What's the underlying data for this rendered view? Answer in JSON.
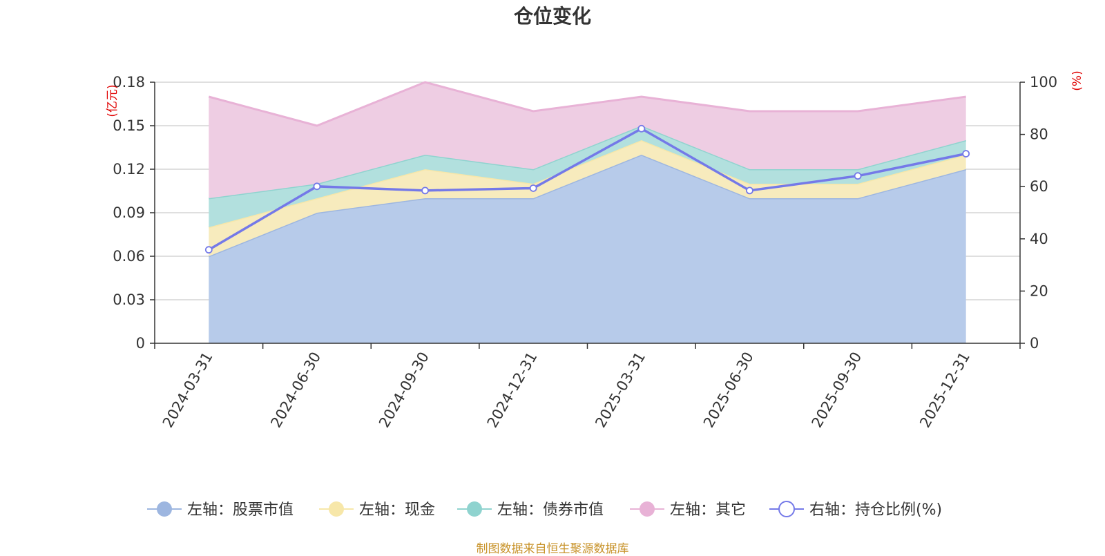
{
  "title": "仓位变化",
  "source": "制图数据来自恒生聚源数据库",
  "chart_data": {
    "type": "area",
    "categories": [
      "2024-03-31",
      "2024-06-30",
      "2024-09-30",
      "2024-12-31",
      "2025-03-31",
      "2025-06-30",
      "2025-09-30",
      "2025-12-31"
    ],
    "y_left": {
      "unit": "(亿元)",
      "ticks": [
        0,
        0.03,
        0.06,
        0.09,
        0.12,
        0.15,
        0.18
      ],
      "tick_labels": [
        "0",
        "0.03",
        "0.06",
        "0.09",
        "0.12",
        "0.15",
        "0.18"
      ],
      "range": [
        0,
        0.18
      ]
    },
    "y_right": {
      "unit": "(%)",
      "ticks": [
        0,
        20,
        40,
        60,
        80,
        100
      ],
      "tick_labels": [
        "0",
        "20",
        "40",
        "60",
        "80",
        "100"
      ],
      "range": [
        0,
        100
      ]
    },
    "grid": true,
    "legend_position": "bottom",
    "stacked_series": [
      {
        "name": "左轴：股票市值",
        "axis": "left",
        "color": "#9db6e0",
        "fill": "#b7cbea",
        "values": [
          0.06,
          0.09,
          0.1,
          0.1,
          0.13,
          0.1,
          0.1,
          0.12
        ]
      },
      {
        "name": "左轴：现金",
        "axis": "left",
        "color": "#f7e7a9",
        "fill": "#f7ebbd",
        "values": [
          0.02,
          0.01,
          0.02,
          0.01,
          0.01,
          0.01,
          0.01,
          0.01
        ]
      },
      {
        "name": "左轴：债券市值",
        "axis": "left",
        "color": "#8fd3cf",
        "fill": "#b2e0de",
        "values": [
          0.02,
          0.01,
          0.01,
          0.01,
          0.01,
          0.01,
          0.01,
          0.01
        ]
      },
      {
        "name": "左轴：其它",
        "axis": "left",
        "color": "#e8b2d6",
        "fill": "#eecde3",
        "values": [
          0.07,
          0.04,
          0.05,
          0.04,
          0.02,
          0.04,
          0.04,
          0.03
        ]
      }
    ],
    "line_series": {
      "name": "右轴：持仓比例(%)",
      "axis": "right",
      "color": "#7479e8",
      "values": [
        35.8,
        60.1,
        58.5,
        59.4,
        82.2,
        58.5,
        64.1,
        72.6
      ]
    }
  }
}
